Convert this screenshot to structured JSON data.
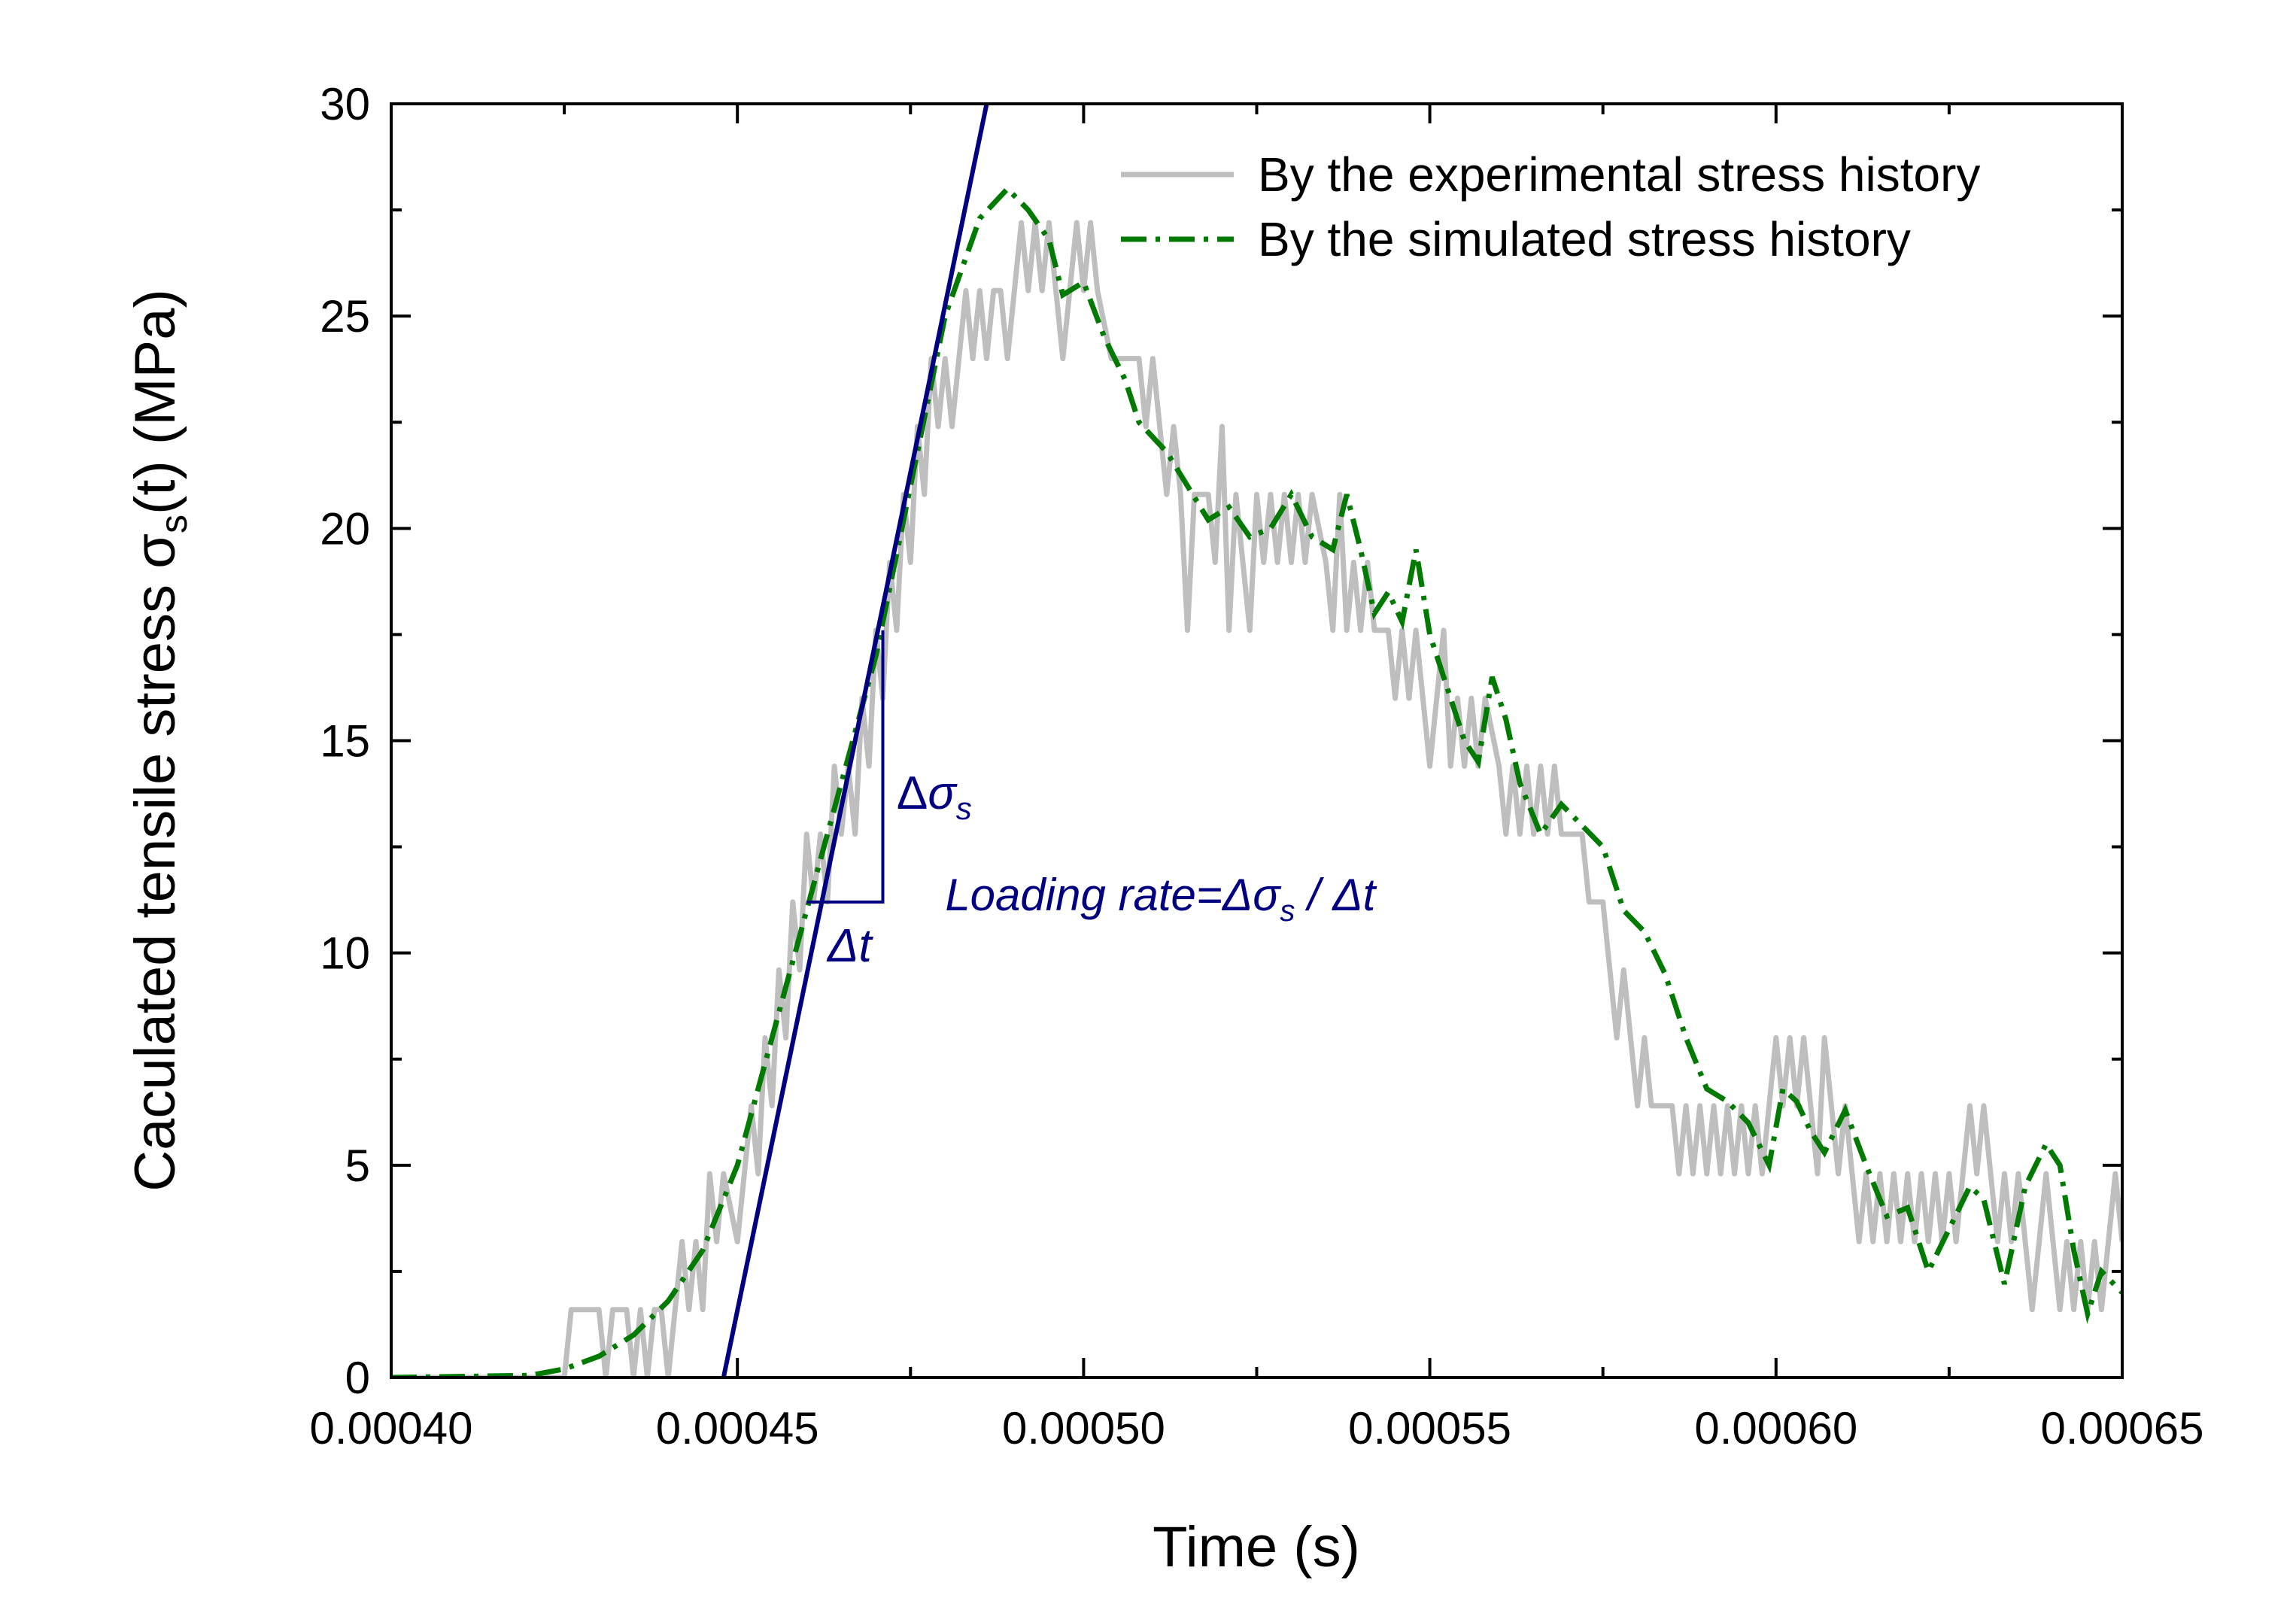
{
  "chart_data": {
    "type": "line",
    "title": "",
    "xlabel": "Time (s)",
    "ylabel": {
      "prefix": "Caculated tensile stress ",
      "symbol": "σ",
      "subscript": "s",
      "suffix": "(t) (MPa)"
    },
    "xlim": [
      0.0004,
      0.00065
    ],
    "ylim": [
      0,
      30
    ],
    "x_ticks": [
      0.0004,
      0.00045,
      0.0005,
      0.00055,
      0.0006,
      0.00065
    ],
    "x_tick_labels": [
      "0.00040",
      "0.00045",
      "0.00050",
      "0.00055",
      "0.00060",
      "0.00065"
    ],
    "y_ticks": [
      0,
      5,
      10,
      15,
      20,
      25,
      30
    ],
    "y_tick_labels": [
      "0",
      "5",
      "10",
      "15",
      "20",
      "25",
      "30"
    ],
    "legend_position": "top-right",
    "series": [
      {
        "name": "By the experimental stress history",
        "color": "#bebebe",
        "style": "solid",
        "points": [
          [
            0.0004,
            0
          ],
          [
            0.000425,
            0
          ],
          [
            0.000426,
            1.6
          ],
          [
            0.00043,
            1.6
          ],
          [
            0.000431,
            0
          ],
          [
            0.000432,
            1.6
          ],
          [
            0.000434,
            1.6
          ],
          [
            0.000435,
            0
          ],
          [
            0.000436,
            1.6
          ],
          [
            0.000437,
            0
          ],
          [
            0.000438,
            1.6
          ],
          [
            0.000439,
            1.6
          ],
          [
            0.00044,
            0
          ],
          [
            0.000441,
            1.6
          ],
          [
            0.000442,
            3.2
          ],
          [
            0.000443,
            1.6
          ],
          [
            0.000444,
            3.2
          ],
          [
            0.000445,
            1.6
          ],
          [
            0.000446,
            4.8
          ],
          [
            0.000447,
            3.2
          ],
          [
            0.000448,
            4.8
          ],
          [
            0.00045,
            3.2
          ],
          [
            0.000451,
            4.8
          ],
          [
            0.000452,
            6.4
          ],
          [
            0.000453,
            4.8
          ],
          [
            0.000454,
            8.0
          ],
          [
            0.000455,
            6.4
          ],
          [
            0.000456,
            9.6
          ],
          [
            0.000457,
            8.0
          ],
          [
            0.000458,
            11.2
          ],
          [
            0.000459,
            9.6
          ],
          [
            0.00046,
            12.8
          ],
          [
            0.000461,
            11.2
          ],
          [
            0.000462,
            12.8
          ],
          [
            0.000463,
            11.2
          ],
          [
            0.000464,
            14.4
          ],
          [
            0.000465,
            12.8
          ],
          [
            0.000466,
            14.4
          ],
          [
            0.000467,
            12.8
          ],
          [
            0.000468,
            16.0
          ],
          [
            0.000469,
            14.4
          ],
          [
            0.00047,
            17.6
          ],
          [
            0.000471,
            16.0
          ],
          [
            0.000472,
            19.2
          ],
          [
            0.000473,
            17.6
          ],
          [
            0.000474,
            20.8
          ],
          [
            0.000475,
            19.2
          ],
          [
            0.000476,
            22.4
          ],
          [
            0.000477,
            20.8
          ],
          [
            0.000478,
            24.0
          ],
          [
            0.000479,
            22.4
          ],
          [
            0.00048,
            24.0
          ],
          [
            0.000481,
            22.4
          ],
          [
            0.000482,
            24.0
          ],
          [
            0.000483,
            25.6
          ],
          [
            0.000484,
            24.0
          ],
          [
            0.000485,
            25.6
          ],
          [
            0.000486,
            24.0
          ],
          [
            0.000487,
            25.6
          ],
          [
            0.000488,
            25.6
          ],
          [
            0.000489,
            24.0
          ],
          [
            0.00049,
            25.6
          ],
          [
            0.000491,
            27.2
          ],
          [
            0.000492,
            25.6
          ],
          [
            0.000493,
            27.2
          ],
          [
            0.000494,
            25.6
          ],
          [
            0.000495,
            27.2
          ],
          [
            0.000496,
            25.6
          ],
          [
            0.000497,
            24.0
          ],
          [
            0.000498,
            25.6
          ],
          [
            0.000499,
            27.2
          ],
          [
            0.0005,
            25.6
          ],
          [
            0.000501,
            27.2
          ],
          [
            0.000502,
            25.6
          ],
          [
            0.000504,
            24.0
          ],
          [
            0.000508,
            24.0
          ],
          [
            0.000509,
            22.4
          ],
          [
            0.00051,
            24.0
          ],
          [
            0.000511,
            22.4
          ],
          [
            0.000512,
            20.8
          ],
          [
            0.000513,
            22.4
          ],
          [
            0.000514,
            20.8
          ],
          [
            0.000515,
            17.6
          ],
          [
            0.000516,
            20.8
          ],
          [
            0.000518,
            20.8
          ],
          [
            0.000519,
            19.2
          ],
          [
            0.00052,
            22.4
          ],
          [
            0.000521,
            17.6
          ],
          [
            0.000522,
            20.8
          ],
          [
            0.000523,
            19.2
          ],
          [
            0.000524,
            17.6
          ],
          [
            0.000525,
            20.8
          ],
          [
            0.000526,
            19.2
          ],
          [
            0.000527,
            20.8
          ],
          [
            0.000528,
            19.2
          ],
          [
            0.000529,
            20.8
          ],
          [
            0.00053,
            19.2
          ],
          [
            0.000531,
            20.8
          ],
          [
            0.000532,
            19.2
          ],
          [
            0.000533,
            20.8
          ],
          [
            0.000535,
            19.2
          ],
          [
            0.000536,
            17.6
          ],
          [
            0.000537,
            20.8
          ],
          [
            0.000538,
            17.6
          ],
          [
            0.000539,
            19.2
          ],
          [
            0.00054,
            17.6
          ],
          [
            0.000541,
            19.2
          ],
          [
            0.000542,
            17.6
          ],
          [
            0.000544,
            17.6
          ],
          [
            0.000545,
            16.0
          ],
          [
            0.000546,
            17.6
          ],
          [
            0.000547,
            16.0
          ],
          [
            0.000548,
            17.6
          ],
          [
            0.000549,
            16.0
          ],
          [
            0.00055,
            14.4
          ],
          [
            0.000551,
            16.0
          ],
          [
            0.000552,
            17.6
          ],
          [
            0.000553,
            14.4
          ],
          [
            0.000554,
            16.0
          ],
          [
            0.000555,
            14.4
          ],
          [
            0.000556,
            16.0
          ],
          [
            0.000557,
            14.4
          ],
          [
            0.000558,
            16.0
          ],
          [
            0.00056,
            14.4
          ],
          [
            0.000561,
            12.8
          ],
          [
            0.000562,
            14.4
          ],
          [
            0.000563,
            12.8
          ],
          [
            0.000564,
            14.4
          ],
          [
            0.000565,
            12.8
          ],
          [
            0.000566,
            14.4
          ],
          [
            0.000567,
            12.8
          ],
          [
            0.000568,
            14.4
          ],
          [
            0.000569,
            12.8
          ],
          [
            0.000572,
            12.8
          ],
          [
            0.000573,
            11.2
          ],
          [
            0.000575,
            11.2
          ],
          [
            0.000576,
            9.6
          ],
          [
            0.000577,
            8.0
          ],
          [
            0.000578,
            9.6
          ],
          [
            0.000579,
            8.0
          ],
          [
            0.00058,
            6.4
          ],
          [
            0.000581,
            8.0
          ],
          [
            0.000582,
            6.4
          ],
          [
            0.000585,
            6.4
          ],
          [
            0.000586,
            4.8
          ],
          [
            0.000587,
            6.4
          ],
          [
            0.000588,
            4.8
          ],
          [
            0.000589,
            6.4
          ],
          [
            0.00059,
            4.8
          ],
          [
            0.000591,
            6.4
          ],
          [
            0.000592,
            4.8
          ],
          [
            0.000593,
            6.4
          ],
          [
            0.000594,
            4.8
          ],
          [
            0.000595,
            6.4
          ],
          [
            0.000596,
            4.8
          ],
          [
            0.000597,
            6.4
          ],
          [
            0.000598,
            4.8
          ],
          [
            0.000599,
            6.4
          ],
          [
            0.0006,
            8.0
          ],
          [
            0.000601,
            6.4
          ],
          [
            0.000602,
            8.0
          ],
          [
            0.000603,
            6.4
          ],
          [
            0.000604,
            8.0
          ],
          [
            0.000605,
            6.4
          ],
          [
            0.000606,
            4.8
          ],
          [
            0.000607,
            8.0
          ],
          [
            0.000608,
            6.4
          ],
          [
            0.000609,
            4.8
          ],
          [
            0.00061,
            6.4
          ],
          [
            0.000611,
            4.8
          ],
          [
            0.000612,
            3.2
          ],
          [
            0.000613,
            4.8
          ],
          [
            0.000614,
            3.2
          ],
          [
            0.000615,
            4.8
          ],
          [
            0.000616,
            3.2
          ],
          [
            0.000617,
            4.8
          ],
          [
            0.000618,
            3.2
          ],
          [
            0.000619,
            4.8
          ],
          [
            0.00062,
            3.2
          ],
          [
            0.000621,
            4.8
          ],
          [
            0.000622,
            3.2
          ],
          [
            0.000623,
            4.8
          ],
          [
            0.000624,
            3.2
          ],
          [
            0.000625,
            4.8
          ],
          [
            0.000626,
            3.2
          ],
          [
            0.000627,
            4.8
          ],
          [
            0.000628,
            6.4
          ],
          [
            0.000629,
            4.8
          ],
          [
            0.00063,
            6.4
          ],
          [
            0.000631,
            4.8
          ],
          [
            0.000632,
            3.2
          ],
          [
            0.000633,
            4.8
          ],
          [
            0.000634,
            3.2
          ],
          [
            0.000635,
            4.8
          ],
          [
            0.000636,
            3.2
          ],
          [
            0.000637,
            1.6
          ],
          [
            0.000638,
            3.2
          ],
          [
            0.000639,
            4.8
          ],
          [
            0.00064,
            3.2
          ],
          [
            0.000641,
            1.6
          ],
          [
            0.000642,
            3.2
          ],
          [
            0.000643,
            1.6
          ],
          [
            0.000644,
            3.2
          ],
          [
            0.000645,
            1.6
          ],
          [
            0.000646,
            3.2
          ],
          [
            0.000647,
            1.6
          ],
          [
            0.000648,
            3.2
          ],
          [
            0.000649,
            4.8
          ],
          [
            0.00065,
            3.2
          ]
        ]
      },
      {
        "name": "By the simulated stress history",
        "color": "#007a00",
        "style": "dash-dot",
        "points": [
          [
            0.0004,
            0
          ],
          [
            0.00042,
            0.05
          ],
          [
            0.000425,
            0.2
          ],
          [
            0.00043,
            0.5
          ],
          [
            0.000435,
            1.0
          ],
          [
            0.00044,
            1.8
          ],
          [
            0.000445,
            3.0
          ],
          [
            0.00045,
            5.0
          ],
          [
            0.000455,
            8.0
          ],
          [
            0.00046,
            11.0
          ],
          [
            0.000465,
            14.0
          ],
          [
            0.00047,
            17.0
          ],
          [
            0.000475,
            21.0
          ],
          [
            0.00048,
            25.0
          ],
          [
            0.000485,
            27.3
          ],
          [
            0.000489,
            28.0
          ],
          [
            0.000492,
            27.5
          ],
          [
            0.000495,
            26.8
          ],
          [
            0.000497,
            25.5
          ],
          [
            0.0005,
            25.8
          ],
          [
            0.000503,
            24.5
          ],
          [
            0.000506,
            23.5
          ],
          [
            0.000508,
            22.5
          ],
          [
            0.000512,
            21.8
          ],
          [
            0.000515,
            21.0
          ],
          [
            0.000518,
            20.2
          ],
          [
            0.000521,
            20.5
          ],
          [
            0.000524,
            19.8
          ],
          [
            0.000527,
            20.0
          ],
          [
            0.00053,
            20.8
          ],
          [
            0.000533,
            19.8
          ],
          [
            0.000536,
            19.5
          ],
          [
            0.000538,
            20.8
          ],
          [
            0.00054,
            19.5
          ],
          [
            0.000542,
            18.0
          ],
          [
            0.000544,
            18.5
          ],
          [
            0.000546,
            17.8
          ],
          [
            0.000548,
            19.5
          ],
          [
            0.00055,
            17.5
          ],
          [
            0.000552,
            16.5
          ],
          [
            0.000555,
            15.0
          ],
          [
            0.000557,
            14.5
          ],
          [
            0.000559,
            16.5
          ],
          [
            0.000561,
            15.5
          ],
          [
            0.000563,
            14.0
          ],
          [
            0.000566,
            12.8
          ],
          [
            0.000569,
            13.5
          ],
          [
            0.000572,
            13.0
          ],
          [
            0.000575,
            12.5
          ],
          [
            0.000578,
            11.0
          ],
          [
            0.000581,
            10.5
          ],
          [
            0.000584,
            9.5
          ],
          [
            0.000587,
            8.0
          ],
          [
            0.00059,
            6.8
          ],
          [
            0.000593,
            6.5
          ],
          [
            0.000596,
            6.0
          ],
          [
            0.000599,
            5.0
          ],
          [
            0.000601,
            6.8
          ],
          [
            0.000603,
            6.5
          ],
          [
            0.000605,
            5.8
          ],
          [
            0.000607,
            5.3
          ],
          [
            0.00061,
            6.3
          ],
          [
            0.000613,
            5.0
          ],
          [
            0.000616,
            3.8
          ],
          [
            0.000619,
            4.0
          ],
          [
            0.000622,
            2.5
          ],
          [
            0.000625,
            3.5
          ],
          [
            0.000628,
            4.5
          ],
          [
            0.00063,
            4.2
          ],
          [
            0.000633,
            2.2
          ],
          [
            0.000636,
            4.5
          ],
          [
            0.000639,
            5.5
          ],
          [
            0.000641,
            5.0
          ],
          [
            0.000643,
            3.0
          ],
          [
            0.000645,
            1.5
          ],
          [
            0.000647,
            2.5
          ],
          [
            0.00065,
            2.0
          ]
        ]
      }
    ],
    "loading_rate_line": {
      "color": "#000080",
      "x": [
        0.000448,
        0.000486
      ],
      "y": [
        0,
        30
      ]
    },
    "annotations": {
      "delta_sigma": {
        "delta": "Δ",
        "symbol": "σ",
        "subscript": "s",
        "x": 0.000473,
        "y": 13.4
      },
      "delta_t": {
        "text": "Δt",
        "x": 0.000463,
        "y": 9.8
      },
      "loading_rate": {
        "prefix": "Loading rate=",
        "delta": "Δ",
        "symbol": "σ",
        "subscript": "s",
        "suffix": " / Δt",
        "x": 0.00048,
        "y": 11.0
      },
      "triangle": {
        "x0": 0.00046,
        "x1": 0.000471,
        "y0": 11.2,
        "y1": 17.6
      }
    }
  }
}
